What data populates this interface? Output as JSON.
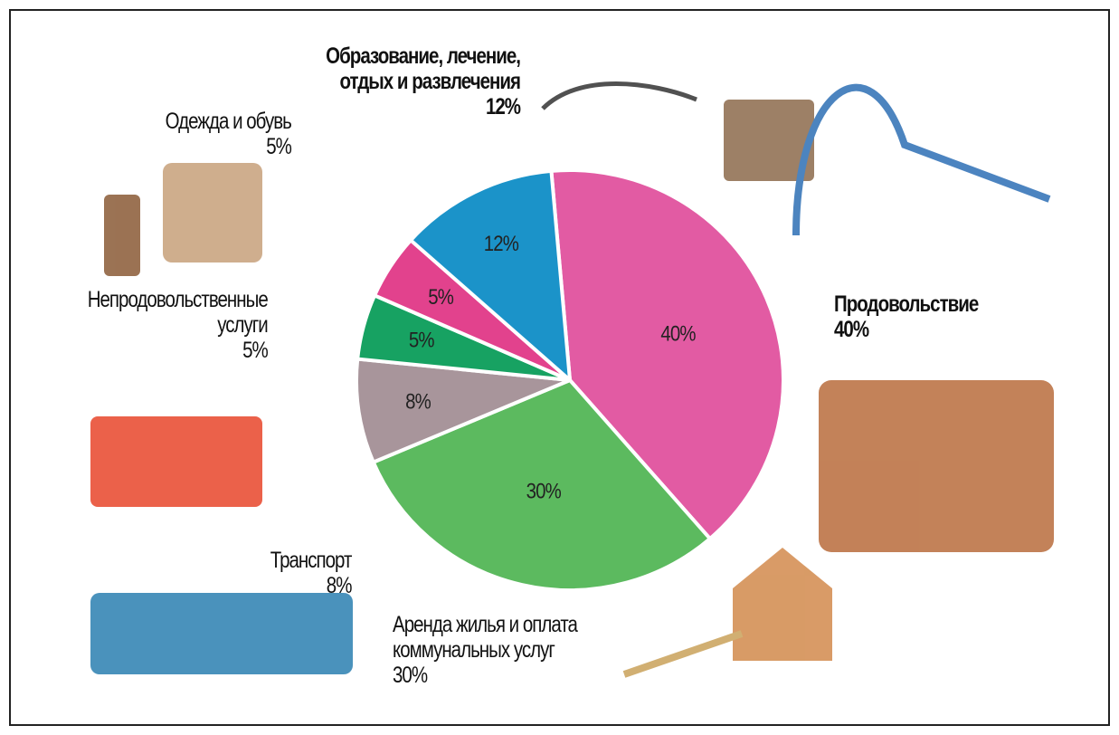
{
  "chart_data": {
    "type": "pie",
    "categories": [
      "Продовольствие",
      "Аренда жилья и оплата\nкоммунальных услуг",
      "Транспорт",
      "Непродовольственные\nуслуги",
      "Одежда и обувь",
      "Образование, лечение,\nотдых и развлечения"
    ],
    "values": [
      40,
      30,
      8,
      5,
      5,
      12
    ],
    "value_labels": [
      "40%",
      "30%",
      "8%",
      "5%",
      "5%",
      "12%"
    ],
    "colors": [
      "#e25ba3",
      "#5cba5f",
      "#a8959b",
      "#17a262",
      "#e2428d",
      "#1b93c9"
    ]
  }
}
